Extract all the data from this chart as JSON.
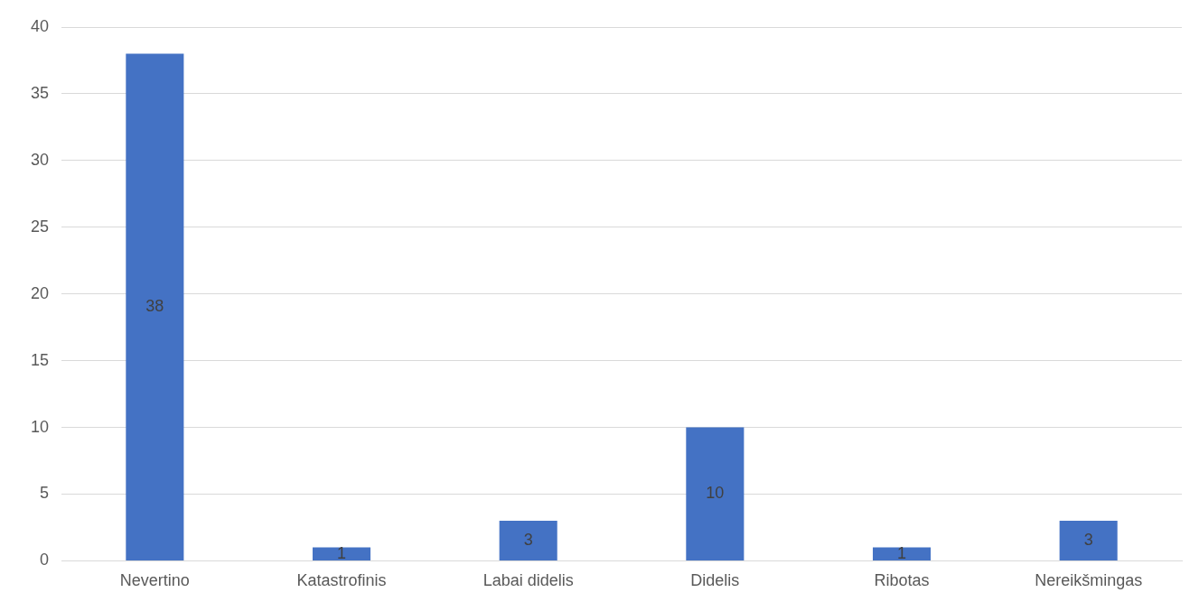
{
  "chart_data": {
    "type": "bar",
    "categories": [
      "Nevertino",
      "Katastrofinis",
      "Labai didelis",
      "Didelis",
      "Ribotas",
      "Nereikšmingas"
    ],
    "values": [
      38,
      1,
      3,
      10,
      1,
      3
    ],
    "color": "#4472c4",
    "ylim": [
      0,
      40
    ],
    "yticks": [
      0,
      5,
      10,
      15,
      20,
      25,
      30,
      35,
      40
    ],
    "grid": "y",
    "data_labels": true
  }
}
